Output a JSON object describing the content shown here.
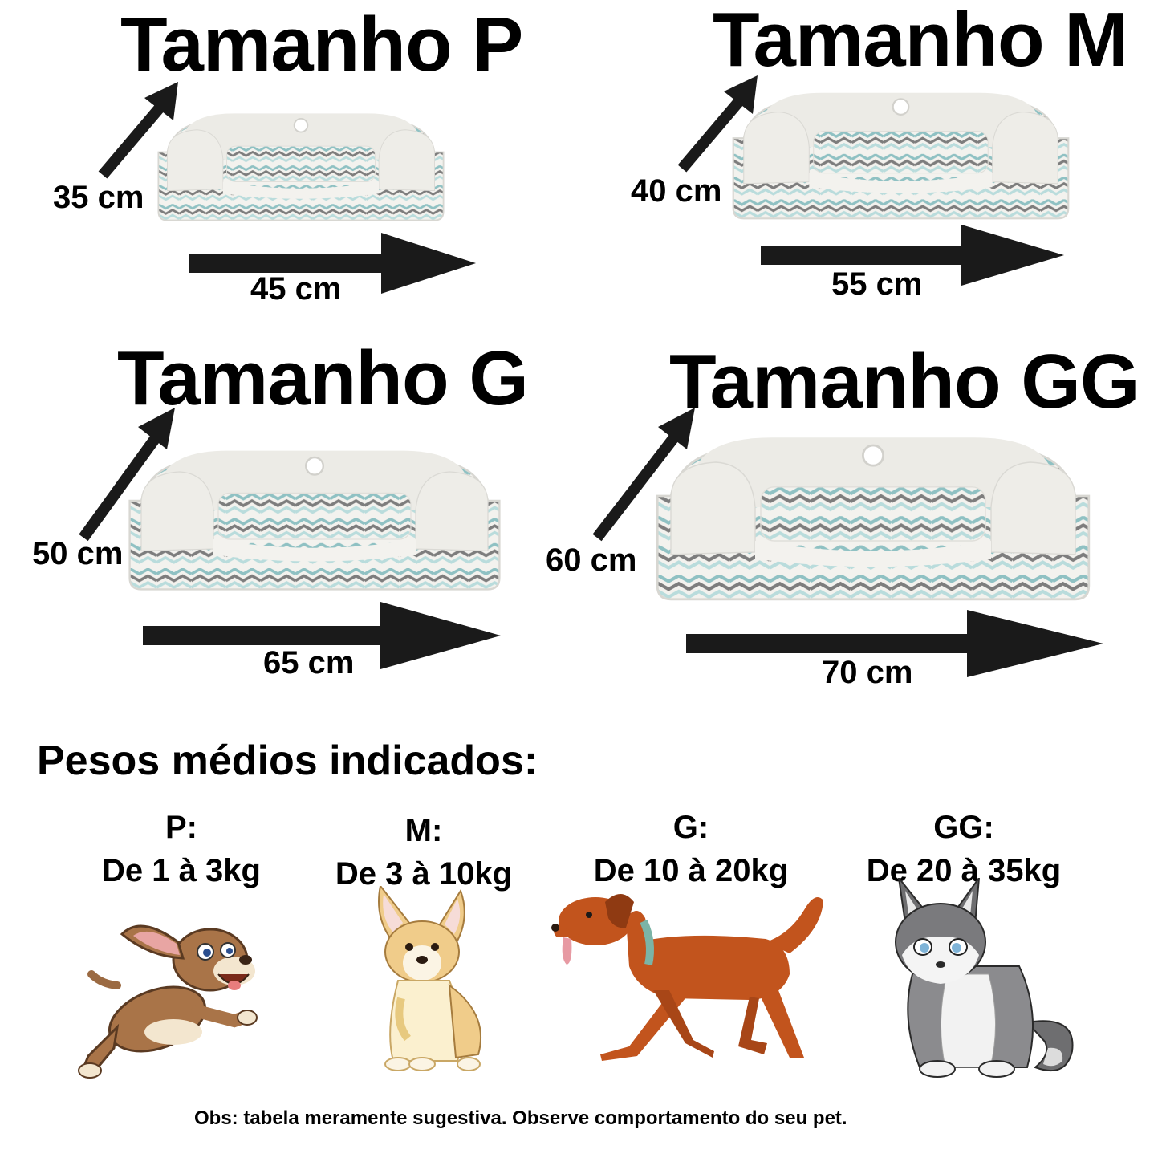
{
  "sizes": [
    {
      "title": "Tamanho P",
      "depth": "35 cm",
      "width": "45 cm"
    },
    {
      "title": "Tamanho M",
      "depth": "40 cm",
      "width": "55 cm"
    },
    {
      "title": "Tamanho G",
      "depth": "50 cm",
      "width": "65 cm"
    },
    {
      "title": "Tamanho GG",
      "depth": "60 cm",
      "width": "70 cm"
    }
  ],
  "weights_heading": "Pesos médios indicados:",
  "weights": [
    {
      "size": "P:",
      "range": "De 1 à 3kg",
      "icon": "running-puppy-icon"
    },
    {
      "size": "M:",
      "range": "De 3 à 10kg",
      "icon": "corgi-puppy-icon"
    },
    {
      "size": "G:",
      "range": "De 10 à 20kg",
      "icon": "walking-dog-icon"
    },
    {
      "size": "GG:",
      "range": "De 20 à 35kg",
      "icon": "husky-puppy-icon"
    }
  ],
  "note": "Obs: tabela meramente sugestiva. Observe  comportamento do seu pet.",
  "colors": {
    "text": "#000000",
    "arrow": "#1a1a1a",
    "bed_base": "#ecebe6",
    "zigzag_teal": "#8fc1c3",
    "zigzag_gray": "#8a8a8a"
  }
}
